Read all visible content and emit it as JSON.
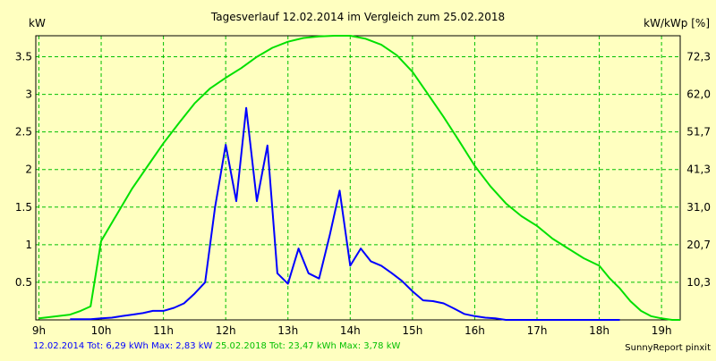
{
  "chart_data": {
    "type": "line",
    "title": "Tagesverlauf 12.02.2014 im Vergleich zum 25.02.2018",
    "y_left_label": "kW",
    "y_right_label": "kW/kWp [%]",
    "x_ticks": [
      {
        "value": 9,
        "label": "9h"
      },
      {
        "value": 10,
        "label": "10h"
      },
      {
        "value": 11,
        "label": "11h"
      },
      {
        "value": 12,
        "label": "12h"
      },
      {
        "value": 13,
        "label": "13h"
      },
      {
        "value": 14,
        "label": "14h"
      },
      {
        "value": 15,
        "label": "15h"
      },
      {
        "value": 16,
        "label": "16h"
      },
      {
        "value": 17,
        "label": "17h"
      },
      {
        "value": 18,
        "label": "18h"
      },
      {
        "value": 19,
        "label": "19h"
      }
    ],
    "xlim": [
      8.95,
      19.3
    ],
    "ylim": [
      0,
      3.78
    ],
    "y_left_ticks": [
      {
        "value": 0.5,
        "label": "0.5"
      },
      {
        "value": 1,
        "label": "1"
      },
      {
        "value": 1.5,
        "label": "1.5"
      },
      {
        "value": 2,
        "label": "2"
      },
      {
        "value": 2.5,
        "label": "2.5"
      },
      {
        "value": 3,
        "label": "3"
      },
      {
        "value": 3.5,
        "label": "3.5"
      }
    ],
    "y_right_ticks": [
      {
        "value": 0.5,
        "label": "10,3"
      },
      {
        "value": 1,
        "label": "20,7"
      },
      {
        "value": 1.5,
        "label": "31,0"
      },
      {
        "value": 2,
        "label": "41,3"
      },
      {
        "value": 2.5,
        "label": "51,7"
      },
      {
        "value": 3,
        "label": "62,0"
      },
      {
        "value": 3.5,
        "label": "72,3"
      }
    ],
    "grid": true,
    "series": [
      {
        "color": "#0000ff",
        "x": [
          9.5,
          9.67,
          9.83,
          10.0,
          10.17,
          10.33,
          10.5,
          10.67,
          10.83,
          11.0,
          11.17,
          11.33,
          11.5,
          11.67,
          11.83,
          12.0,
          12.17,
          12.33,
          12.5,
          12.67,
          12.83,
          13.0,
          13.17,
          13.33,
          13.5,
          13.67,
          13.83,
          14.0,
          14.17,
          14.33,
          14.5,
          14.67,
          14.83,
          15.0,
          15.17,
          15.33,
          15.5,
          15.67,
          15.83,
          16.0,
          16.17,
          16.33,
          16.5,
          16.67,
          16.83,
          17.0,
          17.17,
          17.33,
          17.5,
          17.67,
          17.83,
          18.0,
          18.17,
          18.33
        ],
        "values": [
          0.01,
          0.01,
          0.01,
          0.02,
          0.03,
          0.05,
          0.07,
          0.09,
          0.12,
          0.12,
          0.16,
          0.22,
          0.35,
          0.5,
          1.5,
          2.33,
          1.58,
          2.82,
          1.58,
          2.32,
          0.62,
          0.48,
          0.95,
          0.62,
          0.55,
          1.12,
          1.72,
          0.72,
          0.95,
          0.78,
          0.72,
          0.62,
          0.52,
          0.38,
          0.26,
          0.25,
          0.22,
          0.15,
          0.08,
          0.05,
          0.03,
          0.02,
          0.0,
          0.0,
          0.0,
          0.0,
          0.0,
          0.0,
          0.0,
          0.0,
          0.0,
          0.0,
          0.0,
          0.0
        ]
      },
      {
        "color": "#00e000",
        "x": [
          9.0,
          9.5,
          9.67,
          9.83,
          10.0,
          10.25,
          10.5,
          10.75,
          11.0,
          11.25,
          11.5,
          11.75,
          12.0,
          12.25,
          12.5,
          12.75,
          13.0,
          13.25,
          13.5,
          13.75,
          14.0,
          14.25,
          14.5,
          14.75,
          15.0,
          15.25,
          15.5,
          15.75,
          16.0,
          16.25,
          16.5,
          16.75,
          17.0,
          17.25,
          17.5,
          17.75,
          18.0,
          18.17,
          18.33,
          18.5,
          18.67,
          18.83,
          19.0,
          19.17,
          19.3
        ],
        "values": [
          0.02,
          0.07,
          0.12,
          0.18,
          1.05,
          1.4,
          1.75,
          2.05,
          2.35,
          2.62,
          2.88,
          3.08,
          3.22,
          3.35,
          3.5,
          3.62,
          3.7,
          3.75,
          3.77,
          3.78,
          3.78,
          3.74,
          3.66,
          3.52,
          3.3,
          3.0,
          2.7,
          2.38,
          2.05,
          1.78,
          1.55,
          1.38,
          1.25,
          1.08,
          0.95,
          0.82,
          0.72,
          0.55,
          0.42,
          0.25,
          0.12,
          0.05,
          0.02,
          0.0,
          0.0
        ]
      }
    ]
  },
  "footer": {
    "series1_text": "12.02.2014 Tot: 6,29 kWh Max: 2,83 kW",
    "series2_text": "25.02.2018 Tot: 23,47 kWh Max: 3,78 kW",
    "credit": "SunnyReport pinxit"
  },
  "colors": {
    "background": "#ffffc0",
    "grid": "#00c000",
    "series1": "#0000ff",
    "series2": "#00e000"
  }
}
